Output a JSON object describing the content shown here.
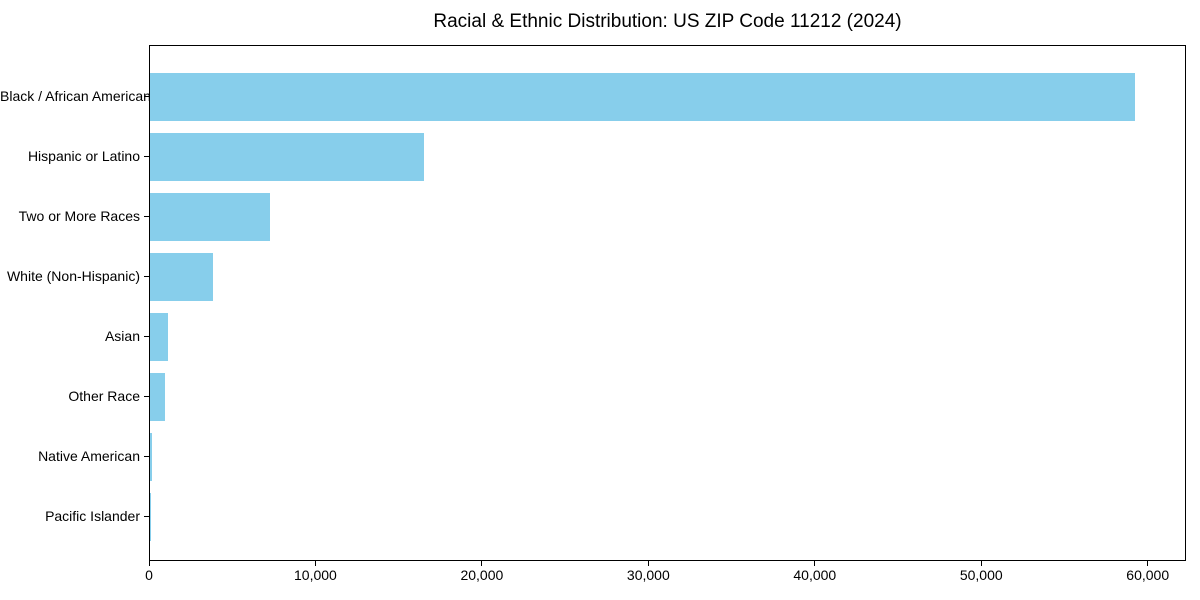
{
  "title": "Racial & Ethnic Distribution: US ZIP Code 11212 (2024)",
  "colors": {
    "bar": "#87CEEB",
    "axis": "#000000",
    "text": "#000000",
    "background": "#FFFFFF"
  },
  "chart_data": {
    "type": "bar",
    "orientation": "horizontal",
    "title": "Racial & Ethnic Distribution: US ZIP Code 11212 (2024)",
    "categories": [
      "Black / African American",
      "Hispanic or Latino",
      "Two or More Races",
      "White (Non-Hispanic)",
      "Asian",
      "Other Race",
      "Native American",
      "Pacific Islander"
    ],
    "values": [
      59300,
      16500,
      7200,
      3800,
      1100,
      900,
      150,
      50
    ],
    "xlabel": "",
    "ylabel": "",
    "xlim": [
      0,
      62300
    ],
    "xticks": [
      0,
      10000,
      20000,
      30000,
      40000,
      50000,
      60000
    ],
    "xtick_labels": [
      "0",
      "10,000",
      "20,000",
      "30,000",
      "40,000",
      "50,000",
      "60,000"
    ],
    "grid": false,
    "legend": null,
    "bar_color": "#87CEEB"
  }
}
